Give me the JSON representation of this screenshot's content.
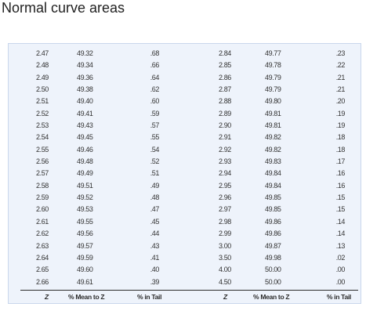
{
  "title": "Normal curve areas",
  "headers": [
    "Z",
    "% Mean to Z",
    "% in Tail",
    "Z",
    "% Mean to Z",
    "% in Tail"
  ],
  "rows": [
    [
      "2.47",
      "49.32",
      ".68",
      "2.84",
      "49.77",
      ".23"
    ],
    [
      "2.48",
      "49.34",
      ".66",
      "2.85",
      "49.78",
      ".22"
    ],
    [
      "2.49",
      "49.36",
      ".64",
      "2.86",
      "49.79",
      ".21"
    ],
    [
      "2.50",
      "49.38",
      ".62",
      "2.87",
      "49.79",
      ".21"
    ],
    [
      "2.51",
      "49.40",
      ".60",
      "2.88",
      "49.80",
      ".20"
    ],
    [
      "2.52",
      "49.41",
      ".59",
      "2.89",
      "49.81",
      ".19"
    ],
    [
      "2.53",
      "49.43",
      ".57",
      "2.90",
      "49.81",
      ".19"
    ],
    [
      "2.54",
      "49.45",
      ".55",
      "2.91",
      "49.82",
      ".18"
    ],
    [
      "2.55",
      "49.46",
      ".54",
      "2.92",
      "49.82",
      ".18"
    ],
    [
      "2.56",
      "49.48",
      ".52",
      "2.93",
      "49.83",
      ".17"
    ],
    [
      "2.57",
      "49.49",
      ".51",
      "2.94",
      "49.84",
      ".16"
    ],
    [
      "2.58",
      "49.51",
      ".49",
      "2.95",
      "49.84",
      ".16"
    ],
    [
      "2.59",
      "49.52",
      ".48",
      "2.96",
      "49.85",
      ".15"
    ],
    [
      "2.60",
      "49.53",
      ".47",
      "2.97",
      "49.85",
      ".15"
    ],
    [
      "2.61",
      "49.55",
      ".45",
      "2.98",
      "49.86",
      ".14"
    ],
    [
      "2.62",
      "49.56",
      ".44",
      "2.99",
      "49.86",
      ".14"
    ],
    [
      "2.63",
      "49.57",
      ".43",
      "3.00",
      "49.87",
      ".13"
    ],
    [
      "2.64",
      "49.59",
      ".41",
      "3.50",
      "49.98",
      ".02"
    ],
    [
      "2.65",
      "49.60",
      ".40",
      "4.00",
      "50.00",
      ".00"
    ],
    [
      "2.66",
      "49.61",
      ".39",
      "4.50",
      "50.00",
      ".00"
    ]
  ]
}
